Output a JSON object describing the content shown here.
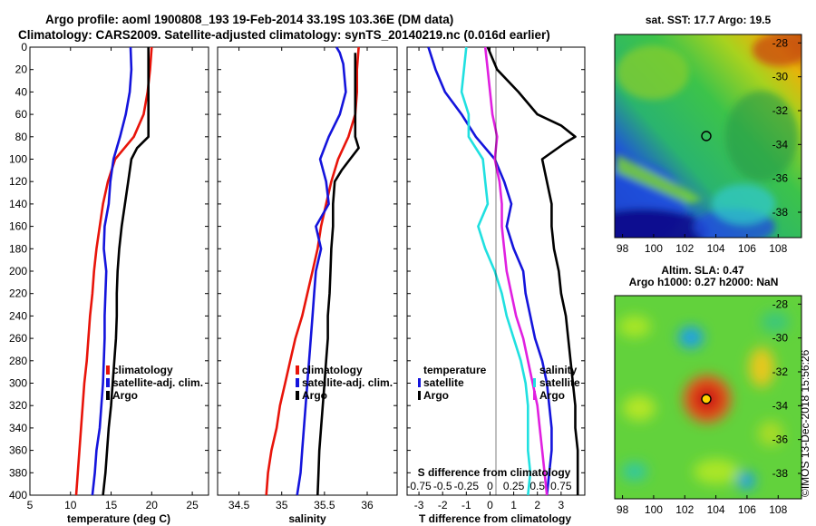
{
  "header": {
    "line1": "Argo profile: aoml 1900808_193 19-Feb-2014 33.19S 103.36E (DM data)",
    "line2": "Climatology: CARS2009. Satellite-adjusted climatology: synTS_20140219.nc (0.016d earlier)"
  },
  "colors": {
    "climatology": "#e8140a",
    "satellite": "#1414dc",
    "argo": "#000000",
    "t_diff": "#20e0e0",
    "s_diff": "#e020e0"
  },
  "y_ticks": [
    0,
    20,
    40,
    60,
    80,
    100,
    120,
    140,
    160,
    180,
    200,
    220,
    240,
    260,
    280,
    300,
    320,
    340,
    360,
    380,
    400
  ],
  "chart_data": [
    {
      "type": "line",
      "id": "temperature",
      "xlabel": "temperature (deg C)",
      "xlim": [
        5,
        27
      ],
      "ylim": [
        0,
        400
      ],
      "xticks": [
        5,
        10,
        15,
        20,
        25
      ],
      "legend": [
        "climatology",
        "satellite-adj. clim.",
        "Argo"
      ],
      "series": [
        {
          "name": "climatology",
          "color": "#e8140a",
          "points": [
            [
              20.0,
              0
            ],
            [
              19.8,
              20
            ],
            [
              19.5,
              40
            ],
            [
              19.0,
              60
            ],
            [
              17.8,
              80
            ],
            [
              15.5,
              100
            ],
            [
              14.6,
              120
            ],
            [
              14.0,
              140
            ],
            [
              13.6,
              160
            ],
            [
              13.2,
              180
            ],
            [
              12.9,
              200
            ],
            [
              12.7,
              220
            ],
            [
              12.4,
              240
            ],
            [
              12.2,
              260
            ],
            [
              12.0,
              280
            ],
            [
              11.7,
              300
            ],
            [
              11.5,
              320
            ],
            [
              11.3,
              340
            ],
            [
              11.1,
              360
            ],
            [
              10.9,
              380
            ],
            [
              10.7,
              400
            ]
          ]
        },
        {
          "name": "satellite-adj. clim.",
          "color": "#1414dc",
          "points": [
            [
              17.4,
              0
            ],
            [
              17.5,
              20
            ],
            [
              17.3,
              40
            ],
            [
              16.8,
              60
            ],
            [
              16.1,
              80
            ],
            [
              15.3,
              100
            ],
            [
              14.9,
              120
            ],
            [
              14.7,
              140
            ],
            [
              14.2,
              160
            ],
            [
              14.1,
              180
            ],
            [
              14.4,
              200
            ],
            [
              14.3,
              220
            ],
            [
              14.2,
              240
            ],
            [
              14.2,
              260
            ],
            [
              14.1,
              280
            ],
            [
              14.0,
              300
            ],
            [
              13.8,
              320
            ],
            [
              13.6,
              340
            ],
            [
              13.2,
              360
            ],
            [
              13.0,
              380
            ],
            [
              12.7,
              400
            ]
          ]
        },
        {
          "name": "Argo",
          "color": "#000000",
          "points": [
            [
              19.6,
              0
            ],
            [
              19.6,
              20
            ],
            [
              19.6,
              40
            ],
            [
              19.6,
              60
            ],
            [
              19.6,
              80
            ],
            [
              18.2,
              90
            ],
            [
              17.5,
              100
            ],
            [
              17.1,
              120
            ],
            [
              16.7,
              140
            ],
            [
              16.3,
              160
            ],
            [
              16.0,
              180
            ],
            [
              15.8,
              200
            ],
            [
              15.7,
              220
            ],
            [
              15.7,
              240
            ],
            [
              15.6,
              260
            ],
            [
              15.4,
              280
            ],
            [
              15.2,
              300
            ],
            [
              15.0,
              320
            ],
            [
              14.7,
              340
            ],
            [
              14.5,
              360
            ],
            [
              14.3,
              380
            ],
            [
              14.0,
              400
            ]
          ]
        }
      ]
    },
    {
      "type": "line",
      "id": "salinity",
      "xlabel": "salinity",
      "xlim": [
        34.25,
        36.35
      ],
      "ylim": [
        0,
        400
      ],
      "xticks": [
        34.5,
        35,
        35.5,
        36
      ],
      "legend": [
        "climatology",
        "satellite-adj. clim.",
        "Argo"
      ],
      "series": [
        {
          "name": "climatology",
          "color": "#e8140a",
          "points": [
            [
              35.9,
              0
            ],
            [
              35.88,
              20
            ],
            [
              35.88,
              40
            ],
            [
              35.86,
              60
            ],
            [
              35.78,
              80
            ],
            [
              35.66,
              100
            ],
            [
              35.58,
              120
            ],
            [
              35.52,
              140
            ],
            [
              35.46,
              160
            ],
            [
              35.42,
              180
            ],
            [
              35.36,
              200
            ],
            [
              35.3,
              220
            ],
            [
              35.24,
              240
            ],
            [
              35.16,
              260
            ],
            [
              35.1,
              280
            ],
            [
              35.04,
              300
            ],
            [
              34.98,
              320
            ],
            [
              34.94,
              340
            ],
            [
              34.88,
              360
            ],
            [
              34.84,
              380
            ],
            [
              34.82,
              400
            ]
          ]
        },
        {
          "name": "satellite-adj. clim.",
          "color": "#1414dc",
          "points": [
            [
              35.64,
              0
            ],
            [
              35.68,
              5
            ],
            [
              35.72,
              15
            ],
            [
              35.75,
              40
            ],
            [
              35.68,
              60
            ],
            [
              35.55,
              80
            ],
            [
              35.45,
              100
            ],
            [
              35.52,
              120
            ],
            [
              35.55,
              140
            ],
            [
              35.4,
              160
            ],
            [
              35.46,
              180
            ],
            [
              35.4,
              200
            ],
            [
              35.38,
              220
            ],
            [
              35.36,
              240
            ],
            [
              35.34,
              260
            ],
            [
              35.32,
              280
            ],
            [
              35.3,
              300
            ],
            [
              35.28,
              320
            ],
            [
              35.26,
              340
            ],
            [
              35.24,
              360
            ],
            [
              35.22,
              380
            ],
            [
              35.18,
              400
            ]
          ]
        },
        {
          "name": "Argo",
          "color": "#000000",
          "points": [
            [
              35.86,
              5
            ],
            [
              35.86,
              20
            ],
            [
              35.86,
              60
            ],
            [
              35.86,
              80
            ],
            [
              35.9,
              90
            ],
            [
              35.8,
              100
            ],
            [
              35.7,
              110
            ],
            [
              35.62,
              120
            ],
            [
              35.6,
              140
            ],
            [
              35.6,
              160
            ],
            [
              35.58,
              180
            ],
            [
              35.57,
              200
            ],
            [
              35.56,
              220
            ],
            [
              35.54,
              240
            ],
            [
              35.54,
              260
            ],
            [
              35.52,
              280
            ],
            [
              35.5,
              300
            ],
            [
              35.48,
              320
            ],
            [
              35.46,
              340
            ],
            [
              35.44,
              360
            ],
            [
              35.43,
              380
            ],
            [
              35.42,
              400
            ]
          ]
        }
      ]
    },
    {
      "type": "line",
      "id": "difference",
      "xlabel": "T difference from climatology",
      "xlabel_top": "S difference from climatology",
      "xlim": [
        -3.5,
        4
      ],
      "ylim": [
        0,
        400
      ],
      "xticks": [
        -3,
        -2,
        -1,
        0,
        1,
        2,
        3
      ],
      "top_tick_labels": [
        "-0.75",
        "-0.5",
        "-0.25",
        "0",
        "0.25",
        "0.5",
        "0.75"
      ],
      "top_tick_values": [
        -3,
        -2,
        -1,
        0,
        1,
        2,
        3
      ],
      "legend": [
        "temperature",
        "satellite",
        "Argo",
        "salinity",
        "satellite",
        "Argo"
      ],
      "series": [
        {
          "name": "T satellite",
          "color": "#1414dc",
          "points": [
            [
              -2.6,
              0
            ],
            [
              -2.3,
              20
            ],
            [
              -1.9,
              40
            ],
            [
              -1.2,
              60
            ],
            [
              -0.6,
              80
            ],
            [
              0.2,
              100
            ],
            [
              0.6,
              120
            ],
            [
              0.9,
              140
            ],
            [
              0.7,
              160
            ],
            [
              1.0,
              180
            ],
            [
              1.4,
              200
            ],
            [
              1.5,
              220
            ],
            [
              1.7,
              240
            ],
            [
              1.9,
              260
            ],
            [
              2.2,
              280
            ],
            [
              2.4,
              300
            ],
            [
              2.5,
              320
            ],
            [
              2.6,
              340
            ],
            [
              2.6,
              360
            ],
            [
              2.5,
              380
            ],
            [
              2.4,
              400
            ]
          ]
        },
        {
          "name": "T Argo",
          "color": "#000000",
          "points": [
            [
              -0.1,
              0
            ],
            [
              0.3,
              20
            ],
            [
              1.2,
              40
            ],
            [
              2.0,
              60
            ],
            [
              3.0,
              70
            ],
            [
              3.6,
              80
            ],
            [
              3.2,
              85
            ],
            [
              2.2,
              100
            ],
            [
              2.4,
              120
            ],
            [
              2.6,
              140
            ],
            [
              2.6,
              160
            ],
            [
              2.7,
              180
            ],
            [
              2.9,
              200
            ],
            [
              3.0,
              220
            ],
            [
              3.2,
              240
            ],
            [
              3.3,
              260
            ],
            [
              3.4,
              280
            ],
            [
              3.5,
              300
            ],
            [
              3.6,
              320
            ],
            [
              3.6,
              340
            ],
            [
              3.7,
              360
            ],
            [
              3.7,
              380
            ],
            [
              3.7,
              400
            ]
          ]
        },
        {
          "name": "S satellite",
          "color": "#20e0e0",
          "points": [
            [
              -1.0,
              0
            ],
            [
              -1.1,
              20
            ],
            [
              -1.2,
              40
            ],
            [
              -0.9,
              60
            ],
            [
              -0.9,
              80
            ],
            [
              -0.3,
              100
            ],
            [
              -0.2,
              120
            ],
            [
              -0.1,
              140
            ],
            [
              -0.5,
              160
            ],
            [
              -0.2,
              180
            ],
            [
              0.2,
              200
            ],
            [
              0.5,
              220
            ],
            [
              0.7,
              240
            ],
            [
              1.0,
              260
            ],
            [
              1.3,
              280
            ],
            [
              1.5,
              300
            ],
            [
              1.6,
              320
            ],
            [
              1.6,
              340
            ],
            [
              1.6,
              360
            ],
            [
              1.7,
              380
            ],
            [
              1.6,
              400
            ]
          ]
        },
        {
          "name": "S Argo",
          "color": "#e020e0",
          "points": [
            [
              -0.2,
              0
            ],
            [
              -0.1,
              20
            ],
            [
              0.0,
              40
            ],
            [
              0.1,
              60
            ],
            [
              0.3,
              80
            ],
            [
              0.2,
              100
            ],
            [
              0.4,
              120
            ],
            [
              0.5,
              140
            ],
            [
              0.5,
              160
            ],
            [
              0.6,
              180
            ],
            [
              0.7,
              200
            ],
            [
              0.9,
              220
            ],
            [
              1.1,
              240
            ],
            [
              1.4,
              260
            ],
            [
              1.6,
              280
            ],
            [
              1.8,
              300
            ],
            [
              2.0,
              320
            ],
            [
              2.1,
              340
            ],
            [
              2.2,
              360
            ],
            [
              2.3,
              380
            ],
            [
              2.4,
              400
            ]
          ]
        }
      ]
    },
    {
      "type": "heatmap",
      "id": "sst_map",
      "title": "sat. SST: 17.7 Argo: 19.5",
      "x_ticks": [
        98,
        100,
        102,
        104,
        106,
        108
      ],
      "y_ticks": [
        -28,
        -30,
        -32,
        -34,
        -36,
        -38
      ],
      "xlim": [
        97.5,
        109.5
      ],
      "ylim": [
        -39.5,
        -27.5
      ],
      "marker": [
        103.36,
        -33.19
      ]
    },
    {
      "type": "heatmap",
      "id": "sla_map",
      "title": "Altim. SLA: 0.47",
      "subtitle": "Argo h1000: 0.27 h2000: NaN",
      "x_ticks": [
        98,
        100,
        102,
        104,
        106,
        108
      ],
      "y_ticks": [
        -28,
        -30,
        -32,
        -34,
        -36,
        -38
      ],
      "xlim": [
        97.5,
        109.5
      ],
      "ylim": [
        -39.5,
        -27.5
      ],
      "marker": [
        103.36,
        -33.19
      ]
    }
  ],
  "footer": {
    "credit": "©IMOS 13-Dec-2018 15:56:26"
  }
}
